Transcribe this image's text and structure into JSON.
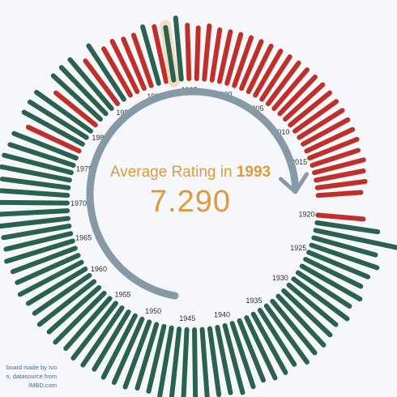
{
  "center": {
    "title_prefix": "Average Rating in",
    "year": "1993",
    "value": "7.290"
  },
  "credit": {
    "line1": "board made by Ivo",
    "line2": "n, datasource from",
    "line3": "IMBD.com"
  },
  "colors": {
    "above": "#2b6150",
    "below": "#c0302a",
    "arrow": "#8899a6",
    "highlight": "#f2dcc2",
    "text_accent": "#e09a3c"
  },
  "chart_data": {
    "type": "radial-bar",
    "title": "",
    "years": [
      1920,
      1921,
      1922,
      1923,
      1924,
      1925,
      1926,
      1927,
      1928,
      1929,
      1930,
      1931,
      1932,
      1933,
      1934,
      1935,
      1936,
      1937,
      1938,
      1939,
      1940,
      1941,
      1942,
      1943,
      1944,
      1945,
      1946,
      1947,
      1948,
      1949,
      1950,
      1951,
      1952,
      1953,
      1954,
      1955,
      1956,
      1957,
      1958,
      1959,
      1960,
      1961,
      1962,
      1963,
      1964,
      1965,
      1966,
      1967,
      1968,
      1969,
      1970,
      1971,
      1972,
      1973,
      1974,
      1975,
      1976,
      1977,
      1978,
      1979,
      1980,
      1981,
      1982,
      1983,
      1984,
      1985,
      1986,
      1987,
      1988,
      1989,
      1990,
      1991,
      1992,
      1993,
      1994,
      1995,
      1996,
      1997,
      1998,
      1999,
      2000,
      2001,
      2002,
      2003,
      2004,
      2005,
      2006,
      2007,
      2008,
      2009,
      2010,
      2011,
      2012,
      2013,
      2014,
      2015,
      2016,
      2017,
      2018,
      2019,
      2020
    ],
    "tick_labels": [
      "1920",
      "1925",
      "1930",
      "1935",
      "1940",
      "1945",
      "1950",
      "1955",
      "1960",
      "1965",
      "1970",
      "1975",
      "1980",
      "1985",
      "1990",
      "1995",
      "2000",
      "2005",
      "2010",
      "2015"
    ],
    "values": [
      7.0,
      7.6,
      8.4,
      7.7,
      7.9,
      7.7,
      7.6,
      7.8,
      7.6,
      7.8,
      7.6,
      7.7,
      7.8,
      7.8,
      7.9,
      7.7,
      7.8,
      7.8,
      7.7,
      7.8,
      7.9,
      7.8,
      7.8,
      7.9,
      7.8,
      7.9,
      7.9,
      7.9,
      7.8,
      7.8,
      7.9,
      7.9,
      7.9,
      7.8,
      7.9,
      7.9,
      7.8,
      7.9,
      7.8,
      7.9,
      7.8,
      7.8,
      7.9,
      7.8,
      7.8,
      7.9,
      7.8,
      7.8,
      7.9,
      7.9,
      7.8,
      7.8,
      7.8,
      7.9,
      7.9,
      7.8,
      7.8,
      7.4,
      7.8,
      7.8,
      7.8,
      7.2,
      7.7,
      7.7,
      7.7,
      7.3,
      7.7,
      7.3,
      7.4,
      7.3,
      7.3,
      7.5,
      7.4,
      7.29,
      7.6,
      7.3,
      7.2,
      7.3,
      7.2,
      7.2,
      7.2,
      7.2,
      7.2,
      7.2,
      7.2,
      7.2,
      7.2,
      7.2,
      7.2,
      7.2,
      7.2,
      7.2,
      7.2,
      7.2,
      7.2,
      7.2,
      7.1,
      7.2,
      7.1,
      7.1,
      6.9
    ],
    "category": [
      "below",
      "above",
      "above",
      "above",
      "above",
      "above",
      "above",
      "above",
      "above",
      "above",
      "above",
      "above",
      "above",
      "above",
      "above",
      "above",
      "above",
      "above",
      "above",
      "above",
      "above",
      "above",
      "above",
      "above",
      "above",
      "above",
      "above",
      "above",
      "above",
      "above",
      "above",
      "above",
      "above",
      "above",
      "above",
      "above",
      "above",
      "above",
      "above",
      "above",
      "above",
      "above",
      "above",
      "above",
      "above",
      "above",
      "above",
      "above",
      "above",
      "above",
      "above",
      "above",
      "above",
      "above",
      "above",
      "above",
      "above",
      "below",
      "above",
      "above",
      "above",
      "below",
      "above",
      "above",
      "above",
      "below",
      "above",
      "below",
      "below",
      "below",
      "below",
      "above",
      "below",
      "above",
      "above",
      "below",
      "below",
      "below",
      "below",
      "below",
      "below",
      "below",
      "below",
      "below",
      "below",
      "below",
      "below",
      "below",
      "below",
      "below",
      "below",
      "below",
      "below",
      "below",
      "below",
      "below",
      "below",
      "below",
      "below",
      "below",
      "below"
    ],
    "highlight_year": 1993,
    "rating_range": [
      6.5,
      8.5
    ]
  }
}
